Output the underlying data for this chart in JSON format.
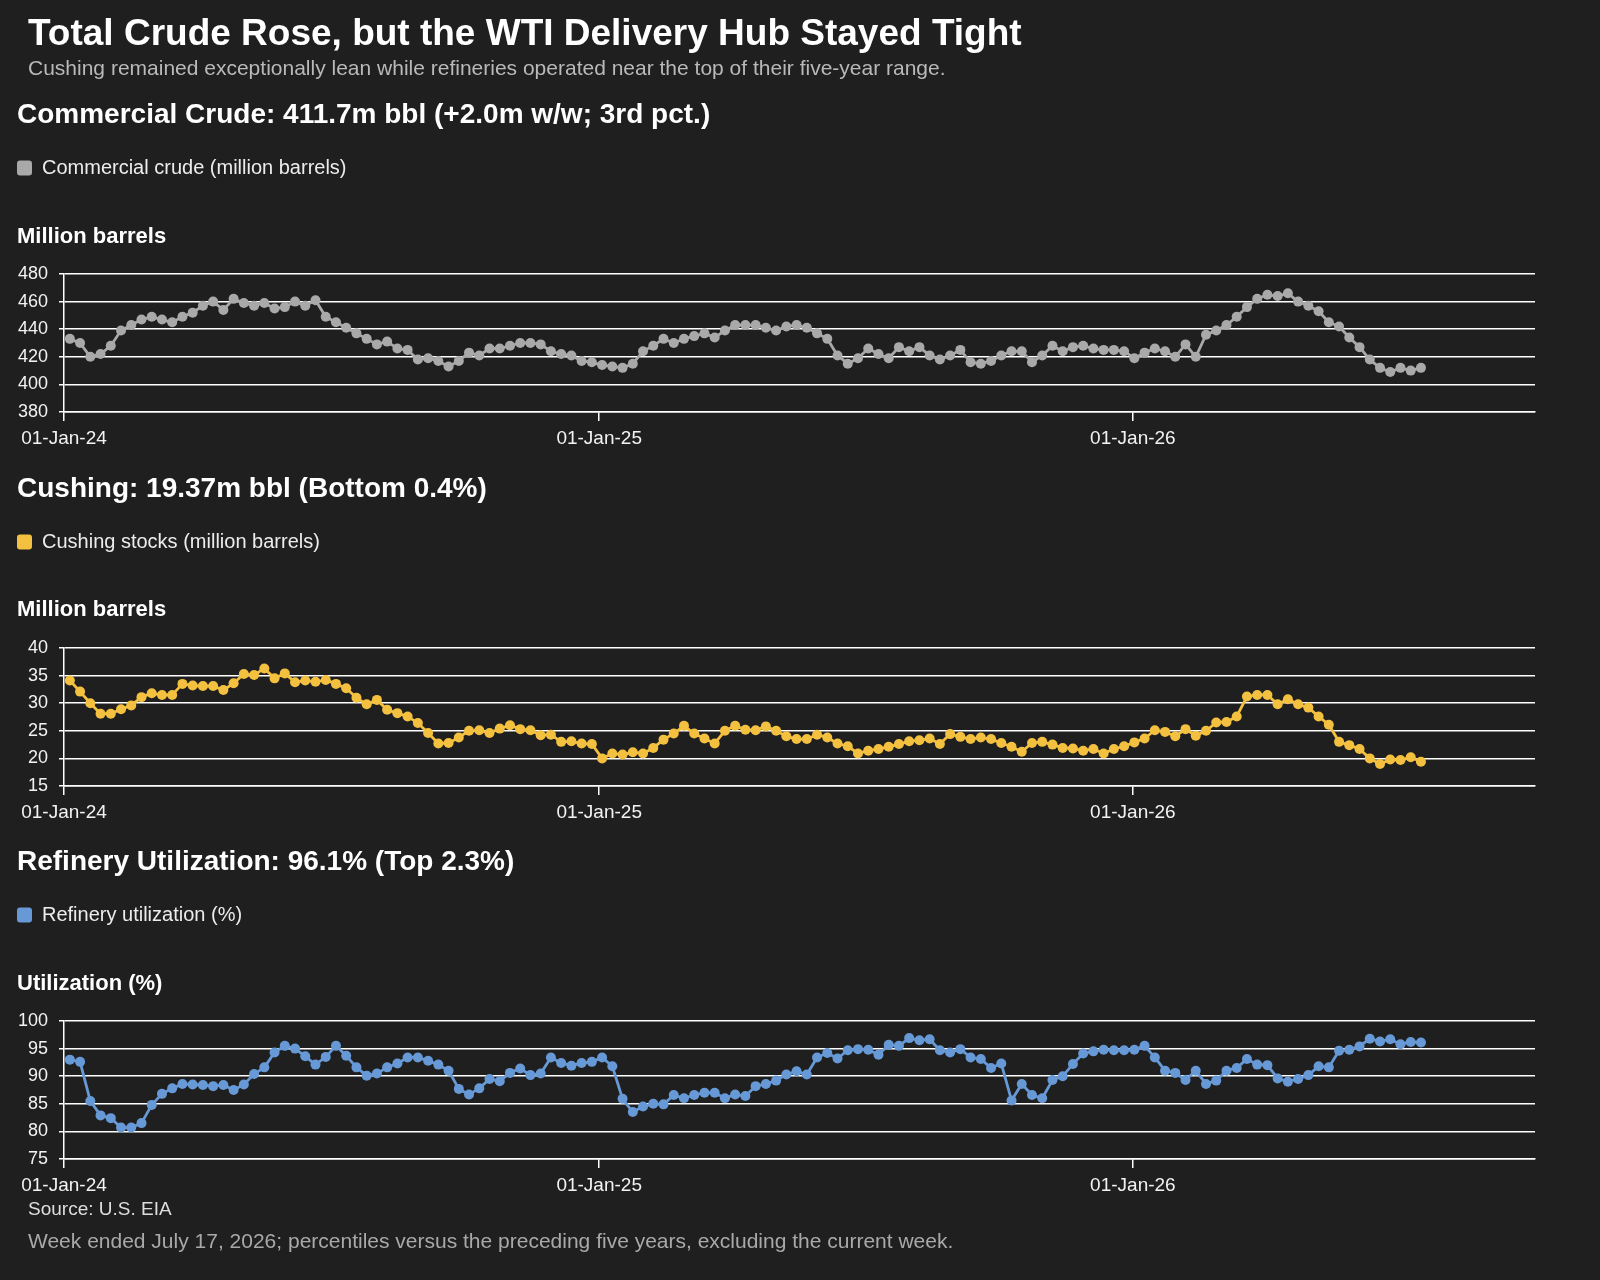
{
  "chart_data": [
    {
      "type": "line",
      "title": "Total Crude Rose, but the WTI Delivery Hub Stayed Tight",
      "subtitle": "Cushing remained exceptionally lean while refineries operated near the top of their five-year range.",
      "annotations": [
        "Commercial Crude: 411.7m bbl (+2.0m w/w; 3rd pct.)"
      ],
      "ylabel": "Million barrels",
      "x": [
        "2024-01-05",
        "2024-01-12",
        "2024-01-19",
        "2024-01-26",
        "2024-02-02",
        "2024-02-09",
        "2024-02-16",
        "2024-02-23",
        "2024-03-01",
        "2024-03-08",
        "2024-03-15",
        "2024-03-22",
        "2024-03-29",
        "2024-04-05",
        "2024-04-12",
        "2024-04-19",
        "2024-04-26",
        "2024-05-03",
        "2024-05-10",
        "2024-05-17",
        "2024-05-24",
        "2024-05-31",
        "2024-06-07",
        "2024-06-14",
        "2024-06-21",
        "2024-06-28",
        "2024-07-05",
        "2024-07-12",
        "2024-07-19",
        "2024-07-26",
        "2024-08-02",
        "2024-08-09",
        "2024-08-16",
        "2024-08-23",
        "2024-08-30",
        "2024-09-06",
        "2024-09-13",
        "2024-09-20",
        "2024-09-27",
        "2024-10-04",
        "2024-10-11",
        "2024-10-18",
        "2024-10-25",
        "2024-11-01",
        "2024-11-08",
        "2024-11-15",
        "2024-11-22",
        "2024-11-29",
        "2024-12-06",
        "2024-12-13",
        "2024-12-20",
        "2024-12-27",
        "2025-01-03",
        "2025-01-10",
        "2025-01-17",
        "2025-01-24",
        "2025-01-31",
        "2025-02-07",
        "2025-02-14",
        "2025-02-21",
        "2025-02-28",
        "2025-03-07",
        "2025-03-14",
        "2025-03-21",
        "2025-03-28",
        "2025-04-04",
        "2025-04-11",
        "2025-04-18",
        "2025-04-25",
        "2025-05-02",
        "2025-05-09",
        "2025-05-16",
        "2025-05-23",
        "2025-05-30",
        "2025-06-06",
        "2025-06-13",
        "2025-06-20",
        "2025-06-27",
        "2025-07-04",
        "2025-07-11",
        "2025-07-18",
        "2025-07-25",
        "2025-08-01",
        "2025-08-08",
        "2025-08-15",
        "2025-08-22",
        "2025-08-29",
        "2025-09-05",
        "2025-09-12",
        "2025-09-19",
        "2025-09-26",
        "2025-10-03",
        "2025-10-10",
        "2025-10-17",
        "2025-10-24",
        "2025-10-31",
        "2025-11-07",
        "2025-11-14",
        "2025-11-21",
        "2025-11-28",
        "2025-12-05",
        "2025-12-12",
        "2025-12-19",
        "2025-12-26",
        "2026-01-02",
        "2026-01-09",
        "2026-01-16",
        "2026-01-23",
        "2026-01-30",
        "2026-02-06",
        "2026-02-13",
        "2026-02-20",
        "2026-02-27",
        "2026-03-06",
        "2026-03-13",
        "2026-03-20",
        "2026-03-27",
        "2026-04-03",
        "2026-04-10",
        "2026-04-17",
        "2026-04-24",
        "2026-05-01",
        "2026-05-08",
        "2026-05-15",
        "2026-05-22",
        "2026-05-29",
        "2026-06-05",
        "2026-06-12",
        "2026-06-19",
        "2026-06-26",
        "2026-07-03",
        "2026-07-10",
        "2026-07-17"
      ],
      "series": [
        {
          "name": "Commercial crude (million barrels)",
          "color": "#a9a9a9",
          "values": [
            433,
            430,
            420,
            422,
            428,
            439,
            443,
            447,
            449,
            447,
            445,
            449,
            452,
            457,
            460,
            454,
            462,
            459,
            457,
            459,
            455,
            456,
            460,
            457,
            461,
            449,
            445,
            441,
            437,
            433,
            429,
            431,
            426,
            425,
            418,
            419,
            417,
            413,
            417,
            423,
            421,
            426,
            426,
            428,
            430,
            430,
            429,
            424,
            422,
            421,
            417,
            416,
            414,
            413,
            412,
            415,
            424,
            428,
            433,
            430,
            433,
            435,
            437,
            434,
            439,
            443,
            443,
            443,
            441,
            439,
            442,
            443,
            441,
            437,
            433,
            421,
            415,
            419,
            426,
            422,
            419,
            427,
            424,
            427,
            421,
            418,
            421,
            425,
            416,
            415,
            417,
            421,
            424,
            424,
            416,
            421,
            428,
            424,
            427,
            428,
            426,
            425,
            425,
            424,
            419,
            423,
            426,
            424,
            420,
            429,
            420,
            436,
            439,
            443,
            449,
            456,
            462,
            465,
            464,
            466,
            460,
            457,
            453,
            445,
            442,
            434,
            427,
            418,
            412,
            409,
            412,
            410,
            412
          ]
        }
      ],
      "xlim": [
        "2024-01-01",
        "2026-10-03"
      ],
      "xticks": [
        {
          "value": "2024-01-01",
          "label": "01-Jan-24"
        },
        {
          "value": "2025-01-01",
          "label": "01-Jan-25"
        },
        {
          "value": "2026-01-01",
          "label": "01-Jan-26"
        }
      ],
      "ylim": [
        380,
        480
      ],
      "yticks": [
        380,
        400,
        420,
        440,
        460,
        480
      ],
      "grid": "y",
      "legend": "top left",
      "marker": "circle",
      "line_style": "solid"
    },
    {
      "type": "line",
      "title": "Cushing: 19.37m bbl (Bottom 0.4%)",
      "ylabel": "Million barrels",
      "x": [
        "2024-01-05",
        "2024-01-12",
        "2024-01-19",
        "2024-01-26",
        "2024-02-02",
        "2024-02-09",
        "2024-02-16",
        "2024-02-23",
        "2024-03-01",
        "2024-03-08",
        "2024-03-15",
        "2024-03-22",
        "2024-03-29",
        "2024-04-05",
        "2024-04-12",
        "2024-04-19",
        "2024-04-26",
        "2024-05-03",
        "2024-05-10",
        "2024-05-17",
        "2024-05-24",
        "2024-05-31",
        "2024-06-07",
        "2024-06-14",
        "2024-06-21",
        "2024-06-28",
        "2024-07-05",
        "2024-07-12",
        "2024-07-19",
        "2024-07-26",
        "2024-08-02",
        "2024-08-09",
        "2024-08-16",
        "2024-08-23",
        "2024-08-30",
        "2024-09-06",
        "2024-09-13",
        "2024-09-20",
        "2024-09-27",
        "2024-10-04",
        "2024-10-11",
        "2024-10-18",
        "2024-10-25",
        "2024-11-01",
        "2024-11-08",
        "2024-11-15",
        "2024-11-22",
        "2024-11-29",
        "2024-12-06",
        "2024-12-13",
        "2024-12-20",
        "2024-12-27",
        "2025-01-03",
        "2025-01-10",
        "2025-01-17",
        "2025-01-24",
        "2025-01-31",
        "2025-02-07",
        "2025-02-14",
        "2025-02-21",
        "2025-02-28",
        "2025-03-07",
        "2025-03-14",
        "2025-03-21",
        "2025-03-28",
        "2025-04-04",
        "2025-04-11",
        "2025-04-18",
        "2025-04-25",
        "2025-05-02",
        "2025-05-09",
        "2025-05-16",
        "2025-05-23",
        "2025-05-30",
        "2025-06-06",
        "2025-06-13",
        "2025-06-20",
        "2025-06-27",
        "2025-07-04",
        "2025-07-11",
        "2025-07-18",
        "2025-07-25",
        "2025-08-01",
        "2025-08-08",
        "2025-08-15",
        "2025-08-22",
        "2025-08-29",
        "2025-09-05",
        "2025-09-12",
        "2025-09-19",
        "2025-09-26",
        "2025-10-03",
        "2025-10-10",
        "2025-10-17",
        "2025-10-24",
        "2025-10-31",
        "2025-11-07",
        "2025-11-14",
        "2025-11-21",
        "2025-11-28",
        "2025-12-05",
        "2025-12-12",
        "2025-12-19",
        "2025-12-26",
        "2026-01-02",
        "2026-01-09",
        "2026-01-16",
        "2026-01-23",
        "2026-01-30",
        "2026-02-06",
        "2026-02-13",
        "2026-02-20",
        "2026-02-27",
        "2026-03-06",
        "2026-03-13",
        "2026-03-20",
        "2026-03-27",
        "2026-04-03",
        "2026-04-10",
        "2026-04-17",
        "2026-04-24",
        "2026-05-01",
        "2026-05-08",
        "2026-05-15",
        "2026-05-22",
        "2026-05-29",
        "2026-06-05",
        "2026-06-12",
        "2026-06-19",
        "2026-06-26",
        "2026-07-03",
        "2026-07-10",
        "2026-07-17"
      ],
      "series": [
        {
          "name": "Cushing stocks (million barrels)",
          "color": "#f4c040",
          "values": [
            34.1,
            32.1,
            30,
            28.1,
            28.1,
            28.9,
            29.6,
            31.1,
            31.8,
            31.5,
            31.5,
            33.5,
            33.2,
            33.1,
            33.1,
            32.4,
            33.6,
            35.3,
            35.1,
            36.3,
            34.5,
            35.4,
            33.8,
            34.1,
            33.9,
            34.2,
            33.5,
            32.7,
            31,
            29.8,
            30.6,
            28.8,
            28.2,
            27.6,
            26.4,
            24.6,
            22.7,
            22.8,
            23.8,
            25,
            25.1,
            24.6,
            25.4,
            26,
            25.3,
            25.1,
            24.2,
            24.3,
            23,
            23.1,
            22.7,
            22.6,
            20,
            20.9,
            20.7,
            21.1,
            20.9,
            21.9,
            23.4,
            24.5,
            25.9,
            24.5,
            23.6,
            22.7,
            25,
            25.9,
            25.2,
            25.1,
            25.8,
            25,
            24,
            23.5,
            23.5,
            24.3,
            23.8,
            22.7,
            22.2,
            20.9,
            21.4,
            21.7,
            22.1,
            22.6,
            23.1,
            23.3,
            23.6,
            22.6,
            24.4,
            23.9,
            23.5,
            23.8,
            23.5,
            22.8,
            22.1,
            21.2,
            22.8,
            23,
            22.5,
            21.9,
            21.8,
            21.4,
            21.7,
            20.9,
            21.7,
            22.2,
            22.9,
            23.6,
            25.1,
            24.8,
            24,
            25.3,
            24.1,
            25,
            26.5,
            26.6,
            27.6,
            31.2,
            31.5,
            31.5,
            29.8,
            30.7,
            29.8,
            29.2,
            27.6,
            26.1,
            23,
            22.4,
            21.7,
            20,
            19,
            19.8,
            19.7,
            20.2,
            19.4
          ]
        }
      ],
      "xlim": [
        "2024-01-01",
        "2026-10-03"
      ],
      "xticks": [
        {
          "value": "2024-01-01",
          "label": "01-Jan-24"
        },
        {
          "value": "2025-01-01",
          "label": "01-Jan-25"
        },
        {
          "value": "2026-01-01",
          "label": "01-Jan-26"
        }
      ],
      "ylim": [
        15,
        40
      ],
      "yticks": [
        15,
        20,
        25,
        30,
        35,
        40
      ],
      "grid": "y",
      "legend": "top left",
      "marker": "circle",
      "line_style": "solid"
    },
    {
      "type": "line",
      "title": "Refinery Utilization: 96.1% (Top 2.3%)",
      "ylabel": "Utilization (%)",
      "annotations": [
        "Source: U.S. EIA",
        "Week ended July 17, 2026; percentiles versus the preceding five years, excluding the current week."
      ],
      "x": [
        "2024-01-05",
        "2024-01-12",
        "2024-01-19",
        "2024-01-26",
        "2024-02-02",
        "2024-02-09",
        "2024-02-16",
        "2024-02-23",
        "2024-03-01",
        "2024-03-08",
        "2024-03-15",
        "2024-03-22",
        "2024-03-29",
        "2024-04-05",
        "2024-04-12",
        "2024-04-19",
        "2024-04-26",
        "2024-05-03",
        "2024-05-10",
        "2024-05-17",
        "2024-05-24",
        "2024-05-31",
        "2024-06-07",
        "2024-06-14",
        "2024-06-21",
        "2024-06-28",
        "2024-07-05",
        "2024-07-12",
        "2024-07-19",
        "2024-07-26",
        "2024-08-02",
        "2024-08-09",
        "2024-08-16",
        "2024-08-23",
        "2024-08-30",
        "2024-09-06",
        "2024-09-13",
        "2024-09-20",
        "2024-09-27",
        "2024-10-04",
        "2024-10-11",
        "2024-10-18",
        "2024-10-25",
        "2024-11-01",
        "2024-11-08",
        "2024-11-15",
        "2024-11-22",
        "2024-11-29",
        "2024-12-06",
        "2024-12-13",
        "2024-12-20",
        "2024-12-27",
        "2025-01-03",
        "2025-01-10",
        "2025-01-17",
        "2025-01-24",
        "2025-01-31",
        "2025-02-07",
        "2025-02-14",
        "2025-02-21",
        "2025-02-28",
        "2025-03-07",
        "2025-03-14",
        "2025-03-21",
        "2025-03-28",
        "2025-04-04",
        "2025-04-11",
        "2025-04-18",
        "2025-04-25",
        "2025-05-02",
        "2025-05-09",
        "2025-05-16",
        "2025-05-23",
        "2025-05-30",
        "2025-06-06",
        "2025-06-13",
        "2025-06-20",
        "2025-06-27",
        "2025-07-04",
        "2025-07-11",
        "2025-07-18",
        "2025-07-25",
        "2025-08-01",
        "2025-08-08",
        "2025-08-15",
        "2025-08-22",
        "2025-08-29",
        "2025-09-05",
        "2025-09-12",
        "2025-09-19",
        "2025-09-26",
        "2025-10-03",
        "2025-10-10",
        "2025-10-17",
        "2025-10-24",
        "2025-10-31",
        "2025-11-07",
        "2025-11-14",
        "2025-11-21",
        "2025-11-28",
        "2025-12-05",
        "2025-12-12",
        "2025-12-19",
        "2025-12-26",
        "2026-01-02",
        "2026-01-09",
        "2026-01-16",
        "2026-01-23",
        "2026-01-30",
        "2026-02-06",
        "2026-02-13",
        "2026-02-20",
        "2026-02-27",
        "2026-03-06",
        "2026-03-13",
        "2026-03-20",
        "2026-03-27",
        "2026-04-03",
        "2026-04-10",
        "2026-04-17",
        "2026-04-24",
        "2026-05-01",
        "2026-05-08",
        "2026-05-15",
        "2026-05-22",
        "2026-05-29",
        "2026-06-05",
        "2026-06-12",
        "2026-06-19",
        "2026-06-26",
        "2026-07-03",
        "2026-07-10",
        "2026-07-17"
      ],
      "series": [
        {
          "name": "Refinery utilization (%)",
          "color": "#6699d6",
          "values": [
            93,
            92.6,
            85.5,
            82.9,
            82.4,
            80.7,
            80.7,
            81.5,
            84.8,
            86.8,
            87.8,
            88.6,
            88.5,
            88.4,
            88.2,
            88.4,
            87.5,
            88.5,
            90.4,
            91.6,
            94.3,
            95.5,
            95,
            93.6,
            92.1,
            93.5,
            95.5,
            93.7,
            91.6,
            90.1,
            90.5,
            91.6,
            92.3,
            93.4,
            93.4,
            92.8,
            92.1,
            91,
            87.7,
            86.7,
            87.8,
            89.5,
            89.1,
            90.6,
            91.4,
            90.2,
            90.5,
            93.4,
            92.4,
            91.9,
            92.4,
            92.6,
            93.4,
            91.8,
            85.9,
            83.5,
            84.5,
            85,
            84.9,
            86.6,
            86,
            86.6,
            87,
            87,
            86,
            86.7,
            86.4,
            88.2,
            88.6,
            89.2,
            90.3,
            90.9,
            90.3,
            93.4,
            94.2,
            93.2,
            94.7,
            94.9,
            94.8,
            93.9,
            95.7,
            95.5,
            96.9,
            96.5,
            96.7,
            94.7,
            94.3,
            94.9,
            93.4,
            93.1,
            91.5,
            92.3,
            85.6,
            88.6,
            86.6,
            86,
            89.3,
            90,
            92.2,
            94.1,
            94.5,
            94.8,
            94.7,
            94.7,
            94.8,
            95.5,
            93.4,
            91,
            90.6,
            89.3,
            91,
            88.6,
            89.2,
            91,
            91.5,
            93.1,
            92.1,
            92,
            89.6,
            89,
            89.5,
            90.2,
            91.8,
            91.6,
            94.6,
            94.8,
            95.4,
            96.8,
            96.3,
            96.7,
            95.8,
            96.2,
            96.1
          ]
        }
      ],
      "xlim": [
        "2024-01-01",
        "2026-10-03"
      ],
      "xticks": [
        {
          "value": "2024-01-01",
          "label": "01-Jan-24"
        },
        {
          "value": "2025-01-01",
          "label": "01-Jan-25"
        },
        {
          "value": "2026-01-01",
          "label": "01-Jan-26"
        }
      ],
      "ylim": [
        75,
        100
      ],
      "yticks": [
        75,
        80,
        85,
        90,
        95,
        100
      ],
      "grid": "y",
      "legend": "top left",
      "marker": "circle",
      "line_style": "solid"
    }
  ]
}
